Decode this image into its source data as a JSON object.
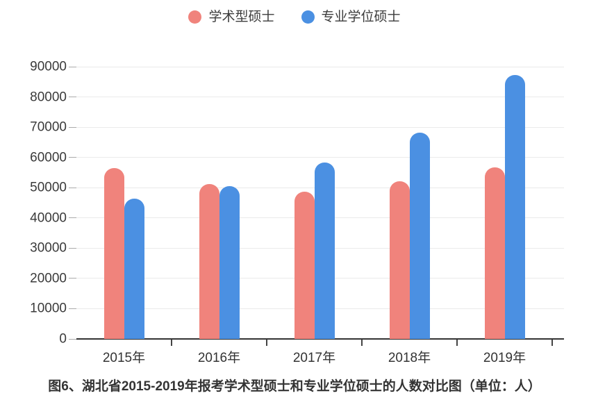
{
  "chart_data": {
    "type": "bar",
    "caption": "图6、湖北省2015-2019年报考学术型硕士和专业学位硕士的人数对比图（单位：人）",
    "categories": [
      "2015年",
      "2016年",
      "2017年",
      "2018年",
      "2019年"
    ],
    "series": [
      {
        "name": "学术型硕士",
        "color": "#F0837C",
        "values": [
          56500,
          51300,
          48700,
          52100,
          56600
        ]
      },
      {
        "name": "专业学位硕士",
        "color": "#4B90E2",
        "values": [
          46300,
          50400,
          58300,
          68200,
          87200
        ]
      }
    ],
    "xlabel": "",
    "ylabel": "",
    "ylim": [
      0,
      90000
    ],
    "ytick_step": 10000,
    "grid": "horizontal",
    "legend_position": "top-center",
    "bar_cap": "rounded-top"
  },
  "colors": {
    "axis": "#333333",
    "gridline": "#eaeaea",
    "tick": "#aaaaaa",
    "label": "#3a3a3a",
    "background": "#ffffff"
  }
}
